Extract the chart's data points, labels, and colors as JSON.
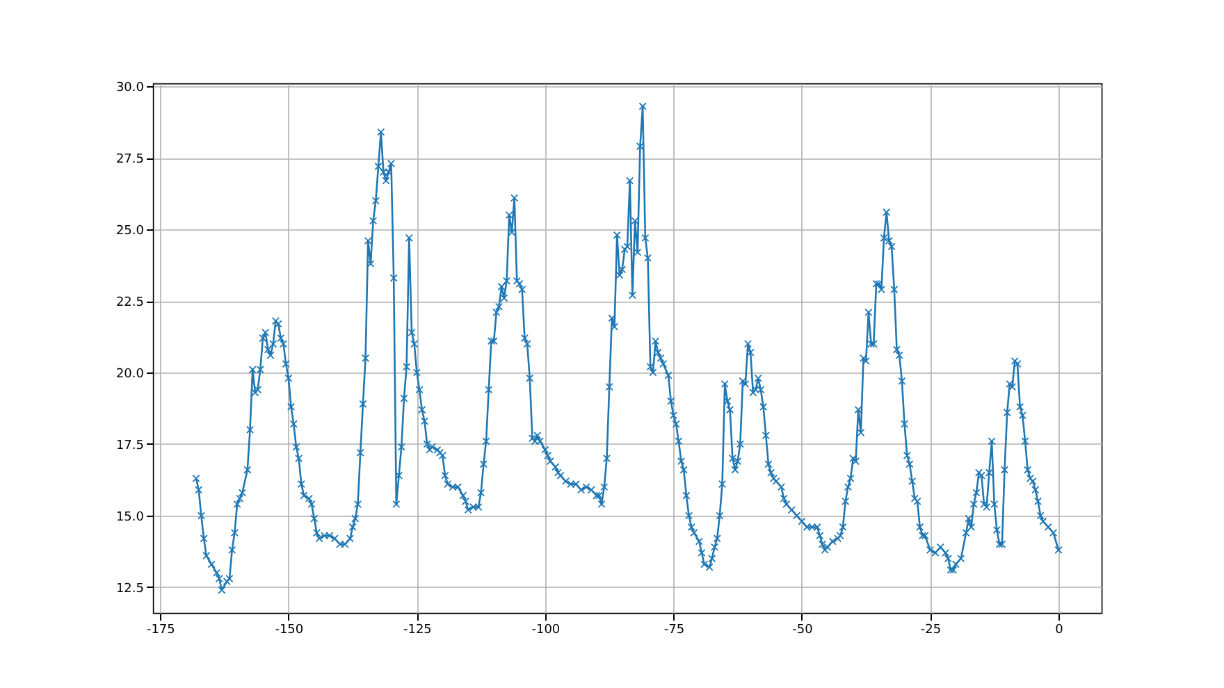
{
  "chart_data": {
    "type": "line",
    "marker": "cross",
    "line_style": "solid",
    "grid": true,
    "xlim": [
      -176.4,
      8.4
    ],
    "ylim": [
      11.6,
      30.1
    ],
    "xticks": [
      -175,
      -150,
      -125,
      -100,
      -75,
      -50,
      -25,
      0
    ],
    "yticks": [
      {
        "value": 12.5,
        "label": "12.5"
      },
      {
        "value": 15,
        "label": "15.0"
      },
      {
        "value": 17.5,
        "label": "17.5"
      },
      {
        "value": 20,
        "label": "20.0"
      },
      {
        "value": 22.5,
        "label": "22.5"
      },
      {
        "value": 25,
        "label": "25.0"
      },
      {
        "value": 27.5,
        "label": "27.5"
      },
      {
        "value": 30,
        "label": "30.0"
      }
    ],
    "series": [
      {
        "color": "#1f77b4",
        "x": [
          -168,
          -167.5,
          -167,
          -166.5,
          -166,
          -165,
          -164,
          -163.5,
          -163,
          -162,
          -161.5,
          -161,
          -160.5,
          -160,
          -159.5,
          -159,
          -158,
          -157.5,
          -157,
          -156.5,
          -156,
          -155.5,
          -155,
          -154.5,
          -154,
          -153.5,
          -153,
          -152.5,
          -152,
          -151.5,
          -151,
          -150.5,
          -150,
          -149.5,
          -149,
          -148.5,
          -148,
          -147.5,
          -147,
          -146,
          -145.5,
          -145,
          -144.5,
          -144,
          -143,
          -142,
          -141,
          -140,
          -139,
          -138,
          -137.5,
          -137,
          -136.5,
          -136,
          -135.5,
          -135,
          -134.5,
          -134,
          -133.5,
          -133,
          -132.5,
          -132,
          -131.5,
          -131,
          -130.5,
          -130,
          -129.5,
          -129,
          -128.5,
          -128,
          -127.5,
          -127,
          -126.5,
          -126,
          -125.5,
          -125,
          -124.5,
          -124,
          -123.5,
          -123,
          -122.5,
          -122,
          -121,
          -120.5,
          -120,
          -119.5,
          -119,
          -118,
          -117,
          -116,
          -115.5,
          -115,
          -114,
          -113,
          -112.5,
          -112,
          -111.5,
          -111,
          -110.5,
          -110,
          -109.5,
          -109,
          -108.5,
          -108,
          -107.5,
          -107,
          -106.5,
          -106,
          -105.5,
          -105,
          -104.5,
          -104,
          -103.5,
          -103,
          -102.5,
          -102,
          -101.5,
          -101,
          -100,
          -99.5,
          -99,
          -98,
          -97.5,
          -97,
          -96,
          -95,
          -94,
          -93,
          -92,
          -91,
          -90,
          -89.5,
          -89,
          -88.5,
          -88,
          -87.5,
          -87,
          -86.5,
          -86,
          -85.5,
          -85,
          -84.5,
          -84,
          -83.5,
          -83,
          -82.5,
          -82,
          -81.5,
          -81,
          -80.5,
          -80,
          -79.5,
          -79,
          -78.5,
          -78,
          -77.5,
          -77,
          -76,
          -75.5,
          -75,
          -74.5,
          -74,
          -73.5,
          -73,
          -72.5,
          -72,
          -71.5,
          -71,
          -70,
          -69.5,
          -69,
          -68,
          -67.5,
          -67,
          -66.5,
          -66,
          -65.5,
          -65,
          -64.5,
          -64,
          -63.5,
          -63,
          -62.5,
          -62,
          -61.5,
          -61,
          -60.5,
          -60,
          -59.5,
          -59,
          -58.5,
          -58,
          -57.5,
          -57,
          -56.5,
          -56,
          -55.5,
          -55,
          -54,
          -53.5,
          -53,
          -52,
          -51,
          -50,
          -49,
          -48,
          -47,
          -46.5,
          -46,
          -45.5,
          -45,
          -44,
          -43,
          -42.5,
          -42,
          -41.5,
          -41,
          -40.5,
          -40,
          -39.5,
          -39,
          -38.5,
          -38,
          -37.5,
          -37,
          -36.5,
          -36,
          -35.5,
          -35,
          -34.5,
          -34,
          -33.5,
          -33,
          -32.5,
          -32,
          -31.5,
          -31,
          -30.5,
          -30,
          -29.5,
          -29,
          -28.5,
          -28,
          -27.5,
          -27,
          -26.5,
          -26,
          -25,
          -24,
          -23,
          -22,
          -21.5,
          -21,
          -20.5,
          -20,
          -19,
          -18,
          -17.5,
          -17,
          -16.5,
          -16,
          -15.5,
          -15,
          -14.5,
          -14,
          -13.5,
          -13,
          -12.5,
          -12,
          -11.5,
          -11,
          -10.5,
          -10,
          -9.5,
          -9,
          -8.5,
          -8,
          -7.5,
          -7,
          -6.5,
          -6,
          -5.5,
          -5,
          -4.5,
          -4,
          -3.5,
          -3,
          -2,
          -1,
          0
        ],
        "values": [
          16.3,
          15.9,
          15.0,
          14.2,
          13.6,
          13.3,
          13.0,
          12.8,
          12.4,
          12.7,
          12.8,
          13.8,
          14.4,
          15.4,
          15.6,
          15.8,
          16.6,
          18.0,
          20.1,
          19.3,
          19.4,
          20.1,
          21.2,
          21.4,
          20.8,
          20.6,
          21.0,
          21.8,
          21.7,
          21.2,
          21.0,
          20.3,
          19.8,
          18.8,
          18.2,
          17.4,
          17.0,
          16.1,
          15.7,
          15.6,
          15.4,
          14.9,
          14.4,
          14.2,
          14.3,
          14.3,
          14.2,
          14.0,
          14.0,
          14.2,
          14.6,
          14.9,
          15.4,
          17.2,
          18.9,
          20.5,
          24.6,
          23.8,
          25.3,
          26.0,
          27.2,
          28.4,
          27.0,
          26.7,
          27.0,
          27.3,
          23.3,
          15.4,
          16.4,
          17.4,
          19.1,
          20.2,
          24.7,
          21.4,
          21.0,
          20.0,
          19.4,
          18.7,
          18.3,
          17.5,
          17.3,
          17.4,
          17.3,
          17.2,
          17.1,
          16.4,
          16.1,
          16.0,
          16.0,
          15.7,
          15.5,
          15.2,
          15.3,
          15.3,
          15.8,
          16.8,
          17.6,
          19.4,
          21.1,
          21.1,
          22.1,
          22.3,
          23.0,
          22.6,
          23.2,
          25.5,
          24.9,
          26.1,
          23.2,
          23.1,
          22.9,
          21.2,
          21.0,
          19.8,
          17.7,
          17.6,
          17.8,
          17.6,
          17.3,
          17.1,
          16.9,
          16.7,
          16.5,
          16.4,
          16.2,
          16.1,
          16.1,
          15.9,
          16.0,
          15.9,
          15.7,
          15.7,
          15.4,
          16.0,
          17.0,
          19.5,
          21.9,
          21.6,
          24.8,
          23.4,
          23.6,
          24.3,
          24.4,
          26.7,
          22.7,
          25.3,
          24.2,
          27.9,
          29.3,
          24.7,
          24.0,
          20.2,
          20.0,
          21.1,
          20.7,
          20.5,
          20.3,
          19.9,
          19.0,
          18.5,
          18.2,
          17.6,
          16.9,
          16.6,
          15.7,
          15.0,
          14.6,
          14.4,
          14.1,
          13.7,
          13.3,
          13.2,
          13.5,
          13.9,
          14.2,
          15.0,
          16.1,
          19.6,
          19.0,
          18.7,
          17.0,
          16.6,
          16.9,
          17.5,
          19.7,
          19.6,
          21.0,
          20.7,
          19.3,
          19.4,
          19.8,
          19.4,
          18.8,
          17.8,
          16.8,
          16.5,
          16.3,
          16.2,
          16.0,
          15.6,
          15.4,
          15.2,
          15.0,
          14.8,
          14.6,
          14.6,
          14.6,
          14.3,
          14.0,
          13.8,
          13.9,
          14.1,
          14.2,
          14.3,
          14.6,
          15.5,
          16.0,
          16.3,
          17.0,
          16.9,
          18.7,
          17.9,
          20.5,
          20.4,
          22.1,
          21.0,
          21.0,
          23.1,
          23.1,
          22.9,
          24.7,
          25.6,
          24.6,
          24.4,
          22.9,
          20.8,
          20.6,
          19.7,
          18.2,
          17.1,
          16.8,
          16.2,
          15.6,
          15.5,
          14.6,
          14.3,
          14.3,
          13.8,
          13.7,
          13.9,
          13.7,
          13.5,
          13.1,
          13.1,
          13.3,
          13.5,
          14.4,
          14.9,
          14.6,
          15.4,
          15.8,
          16.5,
          16.4,
          15.4,
          15.3,
          16.5,
          17.6,
          15.4,
          14.5,
          14.0,
          14.0,
          16.6,
          18.6,
          19.6,
          19.5,
          20.4,
          20.3,
          18.8,
          18.5,
          17.6,
          16.6,
          16.3,
          16.2,
          15.9,
          15.5,
          15.0,
          14.8,
          14.6,
          14.4,
          13.8
        ]
      }
    ]
  }
}
